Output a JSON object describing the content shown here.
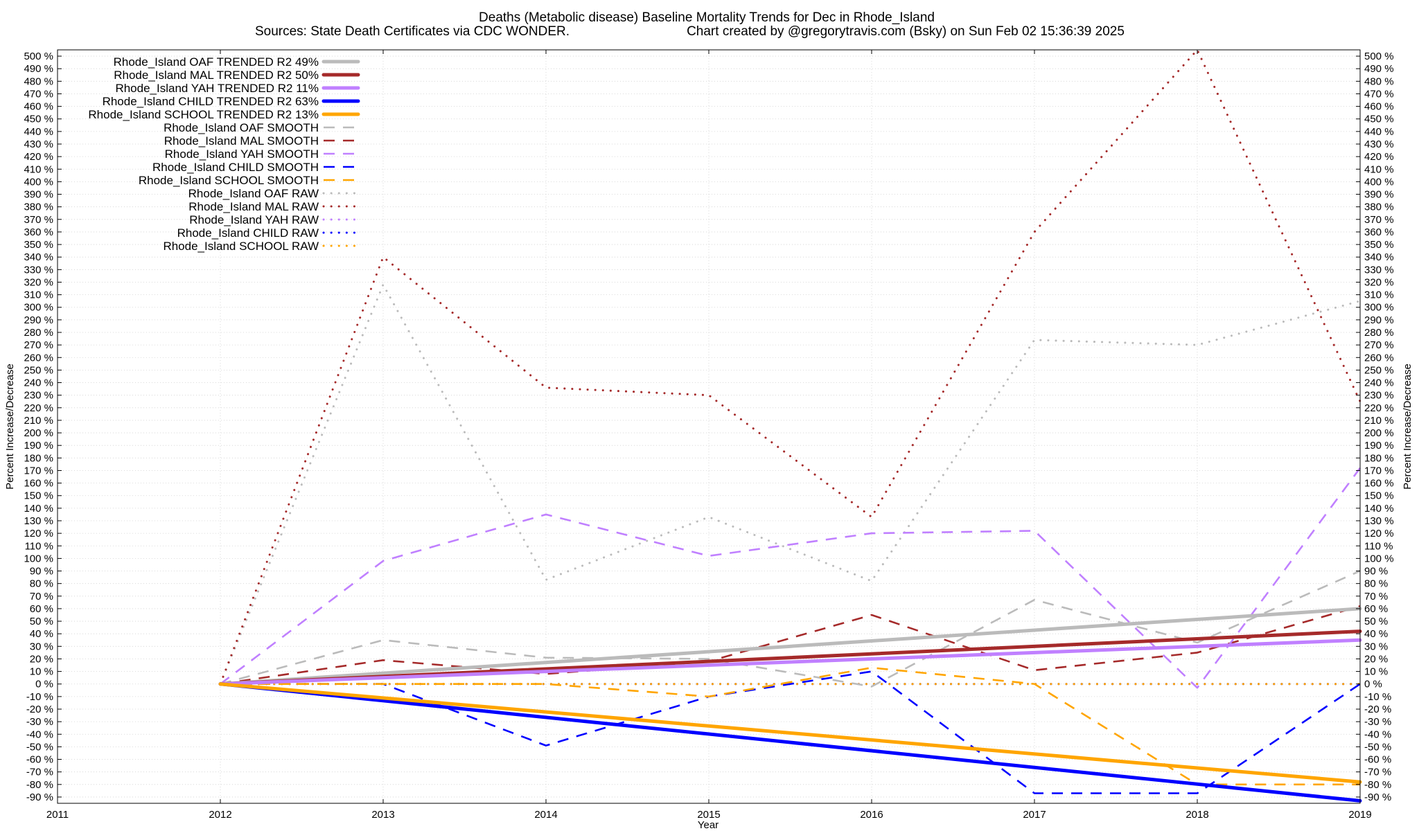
{
  "chart_data": {
    "type": "line",
    "title": "Deaths (Metabolic disease)  Baseline Mortality Trends for Dec in Rhode_Island",
    "subtitle_left": "Sources: State Death Certificates via CDC WONDER.",
    "subtitle_right": "Chart created by @gregorytravis.com (Bsky) on Sun Feb 02 15:36:39 2025",
    "xlabel": "Year",
    "ylabel": "Percent Increase/Decrease",
    "y2label": "Percent Increase/Decrease",
    "xlim": [
      2011,
      2019
    ],
    "ylim": [
      -95,
      505
    ],
    "x_ticks": [
      2011,
      2012,
      2013,
      2014,
      2015,
      2016,
      2017,
      2018,
      2019
    ],
    "y_tick_start": -90,
    "y_tick_end": 500,
    "y_tick_step": 10,
    "y_tick_suffix": " %",
    "grid": true,
    "legend_position": "top-left",
    "series": [
      {
        "name": "Rhode_Island OAF TRENDED R2  49%",
        "color": "#bbbbbb",
        "style": "solid",
        "x": [
          2012,
          2019
        ],
        "values": [
          0,
          60
        ]
      },
      {
        "name": "Rhode_Island MAL TRENDED R2  50%",
        "color": "#a52a2a",
        "style": "solid",
        "x": [
          2012,
          2019
        ],
        "values": [
          0,
          42
        ]
      },
      {
        "name": "Rhode_Island YAH TRENDED R2  11%",
        "color": "#c080ff",
        "style": "solid",
        "x": [
          2012,
          2019
        ],
        "values": [
          0,
          35
        ]
      },
      {
        "name": "Rhode_Island CHILD TRENDED R2  63%",
        "color": "#0000ff",
        "style": "solid",
        "x": [
          2012,
          2019
        ],
        "values": [
          0,
          -93
        ]
      },
      {
        "name": "Rhode_Island SCHOOL TRENDED R2  13%",
        "color": "#ffa500",
        "style": "solid",
        "x": [
          2012,
          2019
        ],
        "values": [
          0,
          -78
        ]
      },
      {
        "name": "Rhode_Island OAF SMOOTH",
        "color": "#bbbbbb",
        "style": "dash",
        "x": [
          2012,
          2013,
          2014,
          2015,
          2016,
          2017,
          2018,
          2019
        ],
        "values": [
          0,
          35,
          21,
          20,
          -2,
          67,
          33,
          90
        ]
      },
      {
        "name": "Rhode_Island MAL SMOOTH",
        "color": "#a52a2a",
        "style": "dash",
        "x": [
          2012,
          2013,
          2014,
          2015,
          2016,
          2017,
          2018,
          2019
        ],
        "values": [
          0,
          19,
          8,
          18,
          55,
          11,
          25,
          62
        ]
      },
      {
        "name": "Rhode_Island YAH SMOOTH",
        "color": "#c080ff",
        "style": "dash",
        "x": [
          2012,
          2013,
          2014,
          2015,
          2016,
          2017,
          2018,
          2019
        ],
        "values": [
          0,
          98,
          135,
          102,
          120,
          122,
          -3,
          172
        ]
      },
      {
        "name": "Rhode_Island CHILD SMOOTH",
        "color": "#0000ff",
        "style": "dash",
        "x": [
          2012,
          2013,
          2014,
          2015,
          2016,
          2017,
          2018,
          2019
        ],
        "values": [
          0,
          0,
          -49,
          -10,
          10,
          -87,
          -87,
          0
        ]
      },
      {
        "name": "Rhode_Island SCHOOL SMOOTH",
        "color": "#ffa500",
        "style": "dash",
        "x": [
          2012,
          2013,
          2014,
          2015,
          2016,
          2017,
          2018,
          2019
        ],
        "values": [
          0,
          0,
          0,
          -10,
          13,
          0,
          -80,
          -80
        ]
      },
      {
        "name": "Rhode_Island OAF RAW",
        "color": "#bbbbbb",
        "style": "dot",
        "x": [
          2012,
          2013,
          2014,
          2015,
          2016,
          2017,
          2018,
          2019
        ],
        "values": [
          0,
          318,
          83,
          133,
          82,
          274,
          270,
          305
        ]
      },
      {
        "name": "Rhode_Island MAL RAW",
        "color": "#a52a2a",
        "style": "dot",
        "x": [
          2012,
          2013,
          2014,
          2015,
          2016,
          2017,
          2018,
          2019
        ],
        "values": [
          0,
          340,
          236,
          230,
          133,
          360,
          505,
          225
        ]
      },
      {
        "name": "Rhode_Island YAH RAW",
        "color": "#c080ff",
        "style": "dot",
        "x": [
          2012,
          2013,
          2014,
          2015,
          2016,
          2017,
          2018,
          2019
        ],
        "values": [
          0,
          0,
          0,
          0,
          0,
          0,
          0,
          0
        ]
      },
      {
        "name": "Rhode_Island CHILD RAW",
        "color": "#0000ff",
        "style": "dot",
        "x": [
          2012,
          2013,
          2014,
          2015,
          2016,
          2017,
          2018,
          2019
        ],
        "values": [
          0,
          0,
          0,
          0,
          0,
          0,
          0,
          0
        ]
      },
      {
        "name": "Rhode_Island SCHOOL RAW",
        "color": "#ffa500",
        "style": "dot",
        "x": [
          2012,
          2013,
          2014,
          2015,
          2016,
          2017,
          2018,
          2019
        ],
        "values": [
          0,
          0,
          0,
          0,
          0,
          0,
          0,
          0
        ]
      }
    ]
  }
}
